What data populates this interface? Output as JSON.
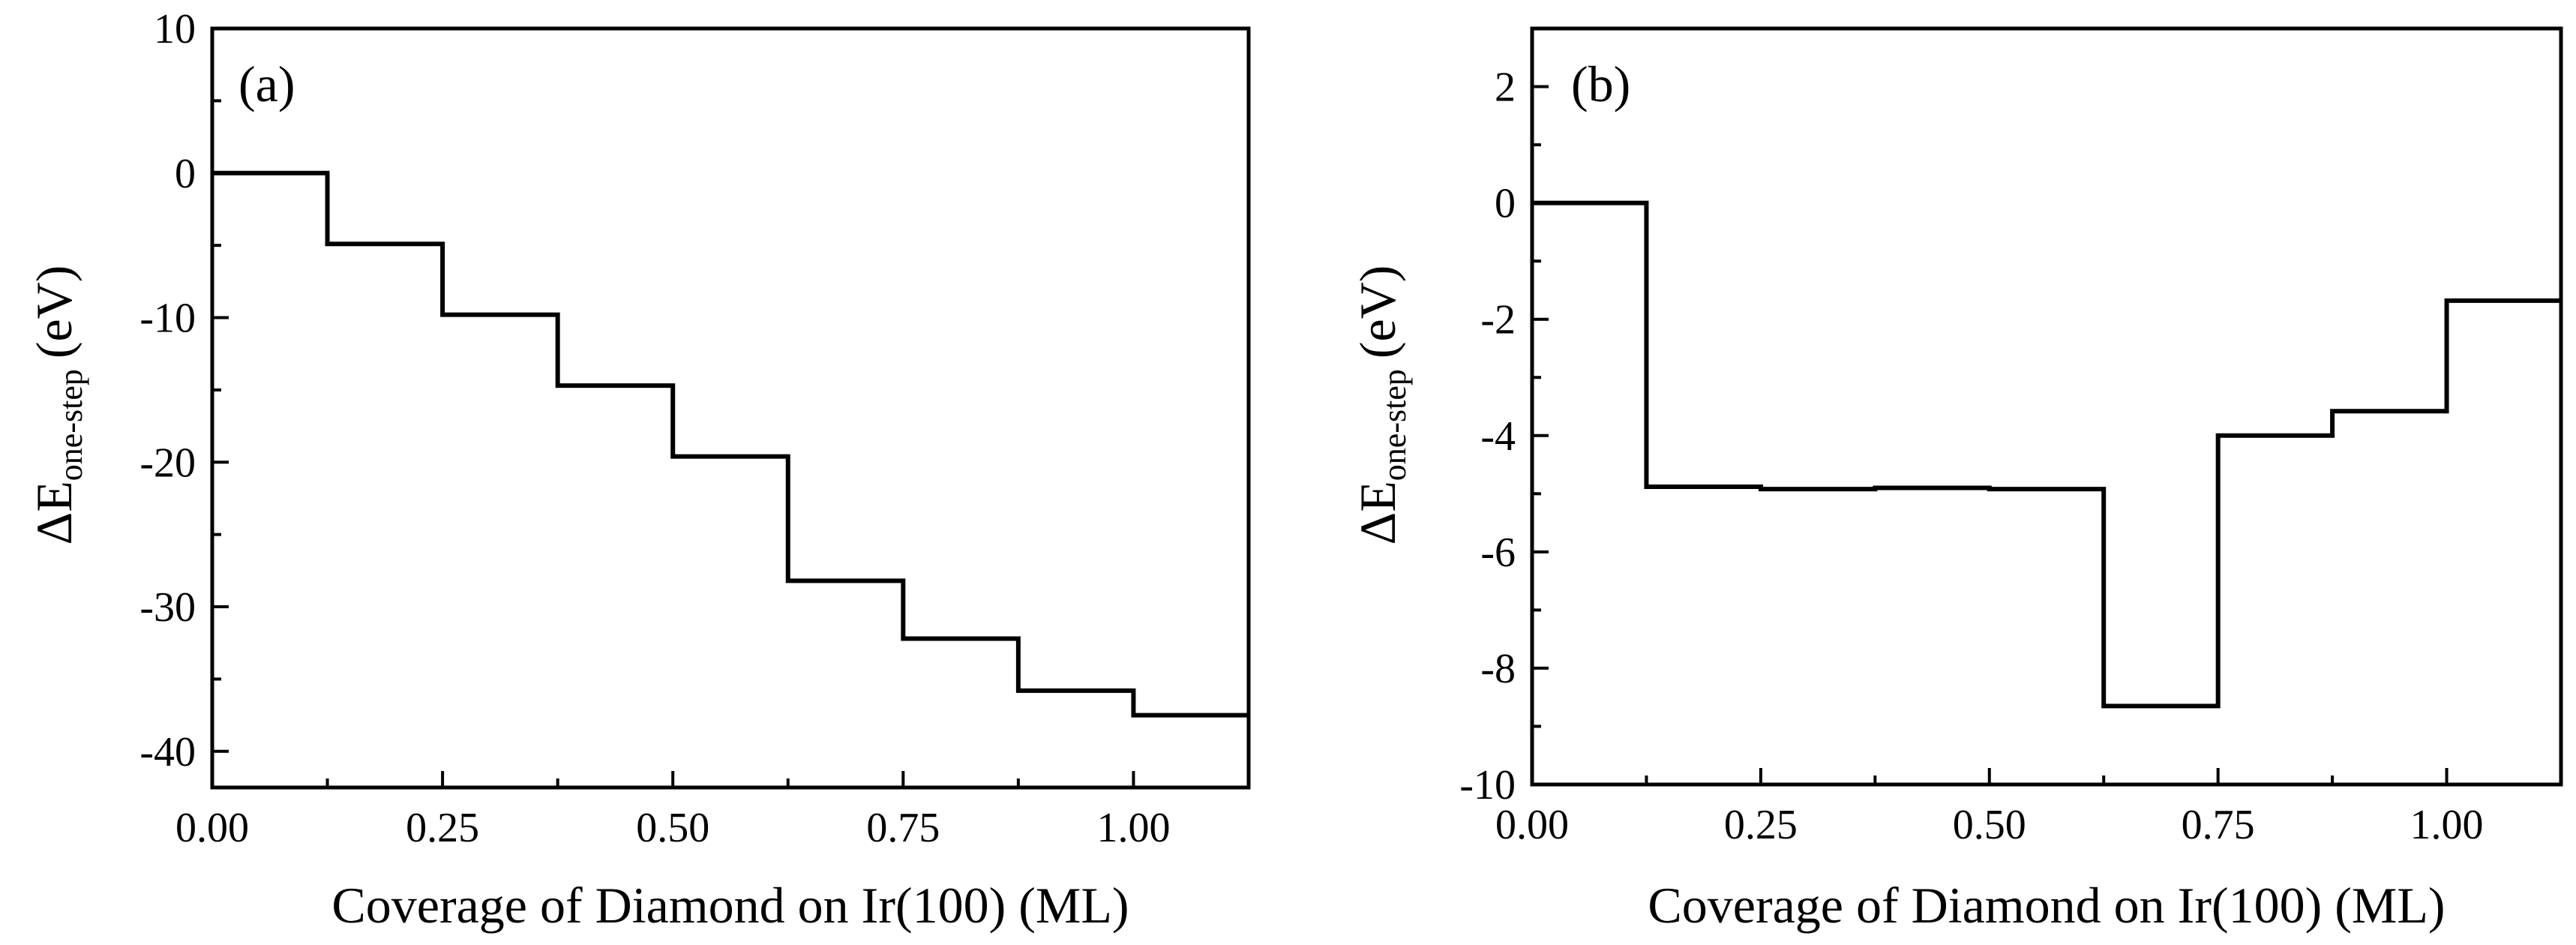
{
  "chart_data": [
    {
      "type": "line",
      "step": "post",
      "panel_label": "(a)",
      "xlabel": "Coverage of Diamond on Ir(100) (ML)",
      "ylabel": {
        "main": "ΔE",
        "subscript": "one-step",
        "unit": "(eV)"
      },
      "xlim": [
        0,
        1.125
      ],
      "ylim": [
        -42.5,
        10
      ],
      "xticks": [
        0,
        0.25,
        0.5,
        0.75,
        1.0
      ],
      "xtick_labels": [
        "0.00",
        "0.25",
        "0.50",
        "0.75",
        "1.00"
      ],
      "yticks": [
        10,
        0,
        -10,
        -20,
        -30,
        -40
      ],
      "ytick_labels": [
        "10",
        "0",
        "-10",
        "-20",
        "-30",
        "-40"
      ],
      "x_minor_step": 0.125,
      "y_minor_step": 5,
      "grid": false,
      "series": [
        {
          "x": [
            0,
            0.125,
            0.25,
            0.375,
            0.5,
            0.625,
            0.75,
            0.875,
            1.0
          ],
          "values": [
            0,
            -4.9,
            -9.8,
            -14.7,
            -19.6,
            -28.2,
            -32.2,
            -35.8,
            -37.5
          ]
        }
      ]
    },
    {
      "type": "line",
      "step": "post",
      "panel_label": "(b)",
      "xlabel": "Coverage of Diamond on Ir(100) (ML)",
      "ylabel": {
        "main": "ΔE",
        "subscript": "one-step",
        "unit": "(eV)"
      },
      "xlim": [
        0,
        1.125
      ],
      "ylim": [
        -10,
        3
      ],
      "xticks": [
        0,
        0.25,
        0.5,
        0.75,
        1.0
      ],
      "xtick_labels": [
        "0.00",
        "0.25",
        "0.50",
        "0.75",
        "1.00"
      ],
      "yticks": [
        2,
        0,
        -2,
        -4,
        -6,
        -8,
        -10
      ],
      "ytick_labels": [
        "2",
        "0",
        "-2",
        "-4",
        "-6",
        "-8",
        "-10"
      ],
      "x_minor_step": 0.125,
      "y_minor_step": 1,
      "grid": false,
      "series": [
        {
          "x": [
            0,
            0.125,
            0.25,
            0.375,
            0.5,
            0.625,
            0.75,
            0.875,
            1.0
          ],
          "values": [
            0,
            -4.88,
            -4.92,
            -4.9,
            -4.92,
            -8.65,
            -4.0,
            -3.58,
            -1.68
          ]
        }
      ]
    }
  ]
}
